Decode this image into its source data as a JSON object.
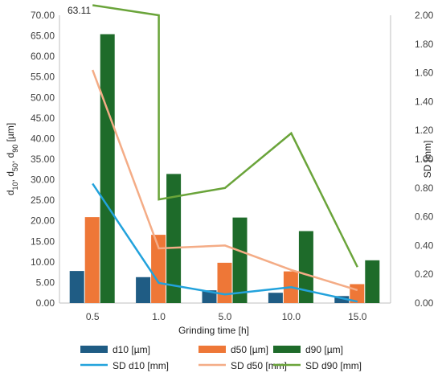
{
  "chart_data": {
    "type": "bar",
    "categories": [
      "0.5",
      "1.0",
      "5.0",
      "10.0",
      "15.0"
    ],
    "xlabel": "Grinding time [h]",
    "ylabel_left": {
      "base": "d",
      "parts": [
        [
          "10",
          ", d"
        ],
        [
          "50",
          ", d"
        ],
        [
          "90",
          " [µm]"
        ]
      ]
    },
    "ylabel_right": "SD [mm]",
    "ylim_left": [
      0,
      70
    ],
    "ylim_right": [
      0,
      2
    ],
    "yticks_left": [
      "0.00",
      "5.00",
      "10.00",
      "15.00",
      "20.00",
      "25.00",
      "30.00",
      "35.00",
      "40.00",
      "45.00",
      "50.00",
      "55.00",
      "60.00",
      "65.00",
      "70.00"
    ],
    "yticks_right": [
      "0.00",
      "0.20",
      "0.40",
      "0.60",
      "0.80",
      "1.00",
      "1.20",
      "1.40",
      "1.60",
      "1.80",
      "2.00"
    ],
    "grid": false,
    "legend_position": "bottom",
    "bar_series": [
      {
        "name": "d10 [µm]",
        "color": "#1f5c84",
        "values": [
          7.8,
          6.3,
          3.1,
          2.5,
          1.7
        ]
      },
      {
        "name": "d50 [µm]",
        "color": "#ee7737",
        "values": [
          20.9,
          16.6,
          9.8,
          7.7,
          4.6
        ]
      },
      {
        "name": "d90 [µm]",
        "color": "#1e6b2a",
        "values": [
          65.4,
          31.4,
          20.8,
          17.5,
          10.4
        ]
      }
    ],
    "line_series": [
      {
        "name": "SD d10 [mm]",
        "color": "#22a2dc",
        "values": [
          0.83,
          0.14,
          0.06,
          0.11,
          0.01
        ]
      },
      {
        "name": "SD d50 [mm]",
        "color": "#f4ac86",
        "values": [
          1.62,
          0.38,
          0.4,
          0.23,
          0.09
        ]
      },
      {
        "name": "SD d90 [mm]",
        "color": "#6aa43a",
        "values": [
          2.07,
          2.0,
          0.72,
          0.8,
          1.18,
          0.25
        ],
        "segments_note": "vertical drop at 1.0"
      }
    ],
    "annotations": [
      {
        "text": "63.11"
      }
    ]
  }
}
